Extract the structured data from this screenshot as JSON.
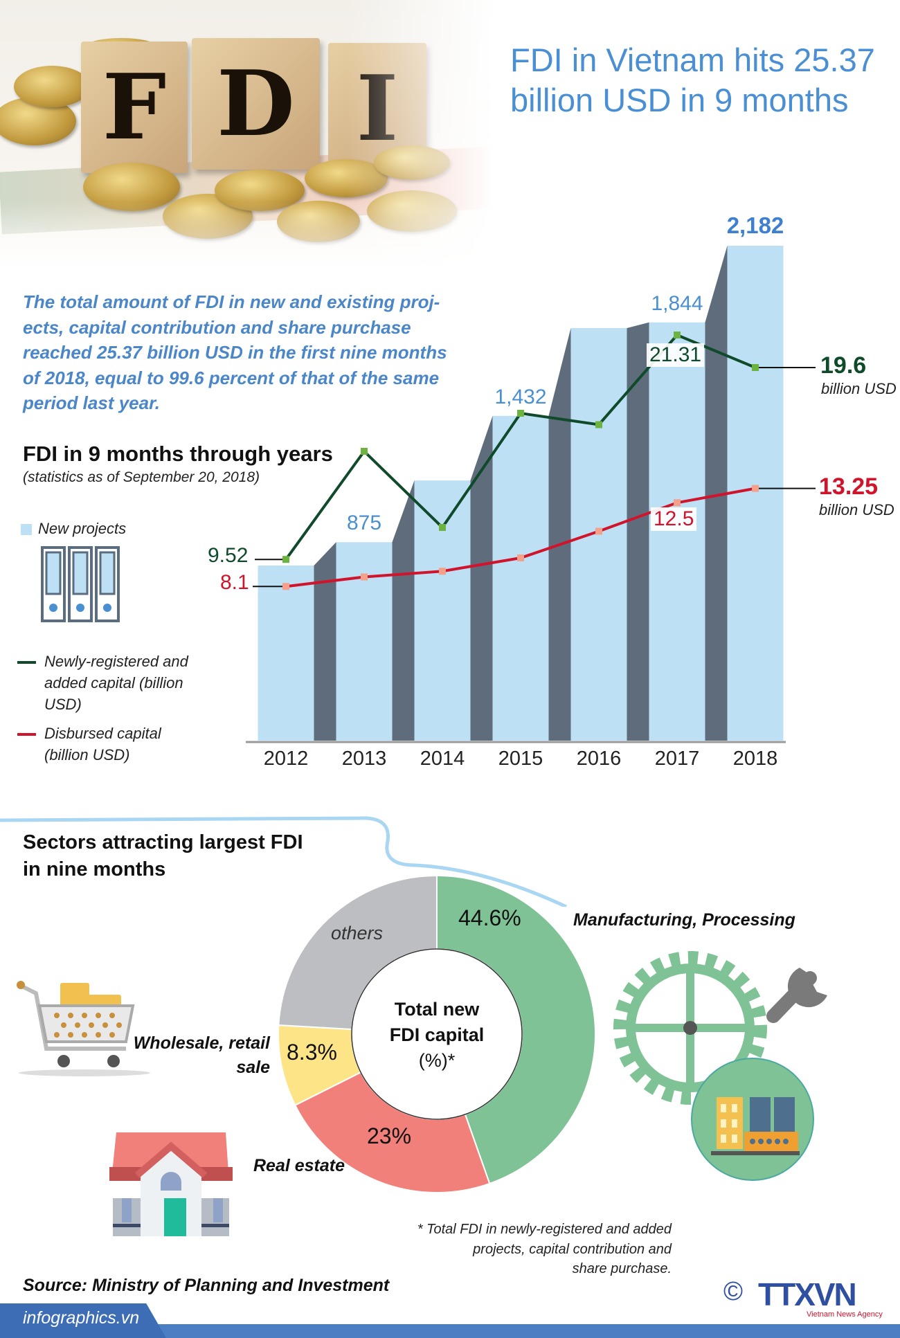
{
  "header": {
    "title": "FDI in Vietnam hits 25.37 billion USD in 9 months",
    "photo_letters": [
      "F",
      "D",
      "I"
    ]
  },
  "intro": "The total amount of FDI in new and existing proj-ects, capital contribution and share purchase reached 25.37 billion USD in the first nine months of 2018, equal to 99.6 percent of that of the same period last year.",
  "chart_section": {
    "title": "FDI in 9 months through years",
    "subtitle": "(statistics as of September 20, 2018)"
  },
  "legend": {
    "new_projects": "New projects",
    "newly_registered": "Newly-registered and added capital (billion USD)",
    "disbursed": "Disbursed capital (billion USD)"
  },
  "colors": {
    "bar": "#bde0f5",
    "bar_shadow": "#5e6c7c",
    "newly_registered": "#0f4a2a",
    "newly_registered_marker": "#6cb33f",
    "disbursed": "#d0142c",
    "disbursed_marker": "#f4a08a",
    "title": "#4a8fd4",
    "manufacturing": "#7fc295",
    "real_estate": "#f17f7a",
    "wholesale": "#fde587",
    "others": "#bdbec2"
  },
  "chart_data": [
    {
      "type": "bar+line",
      "title": "FDI in 9 months through years",
      "categories": [
        "2012",
        "2013",
        "2014",
        "2015",
        "2016",
        "2017",
        "2018"
      ],
      "series": [
        {
          "name": "New projects",
          "type": "bar",
          "values": [
            772,
            875,
            1147,
            1432,
            1819,
            1844,
            2182
          ],
          "labels": [
            "",
            "875",
            "",
            "1,432",
            "",
            "1,844",
            "2,182"
          ]
        },
        {
          "name": "Newly-registered and added capital (billion USD)",
          "type": "line",
          "values": [
            9.52,
            15.2,
            11.2,
            17.2,
            16.6,
            21.31,
            19.6
          ],
          "labels": [
            "9.52",
            "",
            "",
            "",
            "",
            "21.31",
            "19.6"
          ]
        },
        {
          "name": "Disbursed capital (billion USD)",
          "type": "line",
          "values": [
            8.1,
            8.6,
            8.9,
            9.6,
            11.0,
            12.5,
            13.25
          ],
          "labels": [
            "8.1",
            "",
            "",
            "",
            "",
            "12.5",
            "13.25"
          ]
        }
      ],
      "unit_label": "billion USD",
      "grid": false
    },
    {
      "type": "pie",
      "title": "Sectors attracting largest FDI in nine months",
      "center_label": [
        "Total new",
        "FDI capital",
        "(%)*"
      ],
      "slices": [
        {
          "name": "Manufacturing, Processing",
          "value": 44.6,
          "label": "44.6%"
        },
        {
          "name": "Real estate",
          "value": 23,
          "label": "23%"
        },
        {
          "name": "Wholesale, retail sale",
          "value": 8.3,
          "label": "8.3%"
        },
        {
          "name": "others",
          "value": 24.1,
          "label": ""
        }
      ]
    }
  ],
  "sectors": {
    "title_line1": "Sectors attracting largest FDI",
    "title_line2": "in nine months",
    "wholesale_line1": "Wholesale, retail",
    "wholesale_line2": "sale",
    "real_estate": "Real estate",
    "manufacturing": "Manufacturing, Processing",
    "others": "others"
  },
  "footnote": [
    "* Total FDI in newly-registered and added",
    "projects, capital contribution and",
    "share purchase."
  ],
  "source": "Source: Ministry of Planning and Investment",
  "footer": {
    "site": "infographics.vn",
    "logo": "TTXVN",
    "logo_sub": "Vietnam News Agency",
    "copyright": "©"
  }
}
